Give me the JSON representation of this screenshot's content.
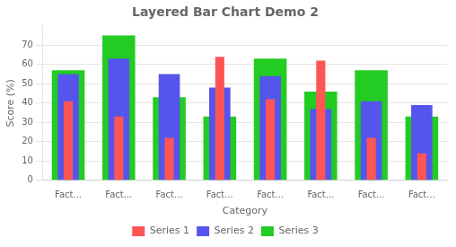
{
  "chart_data": {
    "type": "bar",
    "title": "Layered Bar Chart Demo 2",
    "x_label": "Category",
    "y_label": "Score (%)",
    "categories": [
      "Fact...",
      "Fact...",
      "Fact...",
      "Fact...",
      "Fact...",
      "Fact...",
      "Fact...",
      "Fact..."
    ],
    "series": [
      {
        "name": "Series 1",
        "color": "#FF5555",
        "values": [
          41,
          33,
          22,
          64,
          42,
          62,
          22,
          14
        ]
      },
      {
        "name": "Series 2",
        "color": "#5555EE",
        "values": [
          55,
          63,
          55,
          48,
          54,
          37,
          41,
          39
        ]
      },
      {
        "name": "Series 3",
        "color": "#22CC22",
        "values": [
          57,
          75,
          43,
          33,
          63,
          46,
          57,
          33
        ]
      }
    ],
    "ylim": [
      0,
      80
    ],
    "yticks": [
      0,
      10,
      20,
      30,
      40,
      50,
      60,
      70
    ],
    "grid": true,
    "legend": "bottom"
  }
}
